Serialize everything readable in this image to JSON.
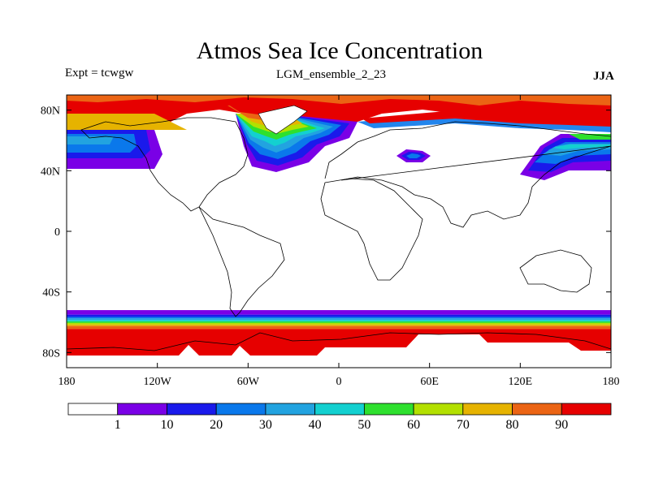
{
  "header": {
    "title": "Atmos Sea Ice Concentration",
    "left_label": "Expt = tcwgw",
    "center_label": "LGM_ensemble_2_23",
    "right_label": "JJA"
  },
  "map": {
    "projection": "cylindrical-equidistant",
    "lon_range": [
      -180,
      180
    ],
    "lat_range": [
      -90,
      90
    ],
    "x_ticks": [
      {
        "value": -180,
        "label": "180"
      },
      {
        "value": -120,
        "label": "120W"
      },
      {
        "value": -60,
        "label": "60W"
      },
      {
        "value": 0,
        "label": "0"
      },
      {
        "value": 60,
        "label": "60E"
      },
      {
        "value": 120,
        "label": "120E"
      },
      {
        "value": 180,
        "label": "180"
      }
    ],
    "y_ticks": [
      {
        "value": 80,
        "label": "80N"
      },
      {
        "value": 40,
        "label": "40N"
      },
      {
        "value": 0,
        "label": "0"
      },
      {
        "value": -40,
        "label": "40S"
      },
      {
        "value": -80,
        "label": "80S"
      }
    ],
    "south_bands": [
      {
        "min_lat": -55,
        "max_lat": -52,
        "color": "#7a00e6"
      },
      {
        "min_lat": -56.5,
        "max_lat": -55,
        "color": "#1a1aeb"
      },
      {
        "min_lat": -57.5,
        "max_lat": -56.5,
        "color": "#0a78eb"
      },
      {
        "min_lat": -58.5,
        "max_lat": -57.5,
        "color": "#22a3e0"
      },
      {
        "min_lat": -59.5,
        "max_lat": -58.5,
        "color": "#13d0d0"
      },
      {
        "min_lat": -60.5,
        "max_lat": -59.5,
        "color": "#2ee02e"
      },
      {
        "min_lat": -61.5,
        "max_lat": -60.5,
        "color": "#b3e000"
      },
      {
        "min_lat": -62.5,
        "max_lat": -61.5,
        "color": "#e6b300"
      },
      {
        "min_lat": -64.5,
        "max_lat": -62.5,
        "color": "#eb6414"
      },
      {
        "min_lat": -86,
        "max_lat": -64.5,
        "color": "#e60000"
      }
    ]
  },
  "colorbar": {
    "levels": [
      1,
      10,
      20,
      30,
      40,
      50,
      60,
      70,
      80,
      90
    ],
    "colors": [
      "#ffffff",
      "#7a00e6",
      "#1a1aeb",
      "#0a78eb",
      "#22a3e0",
      "#13d0d0",
      "#2ee02e",
      "#b3e000",
      "#e6b300",
      "#eb6414",
      "#e60000"
    ]
  }
}
